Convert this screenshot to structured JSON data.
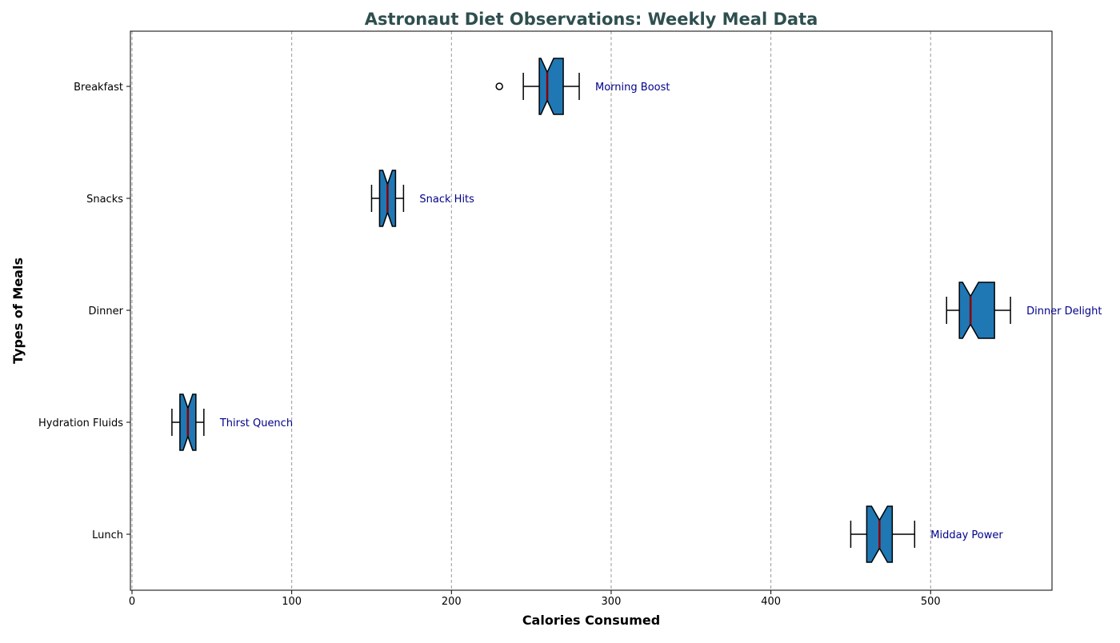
{
  "chart_data": {
    "type": "box",
    "orientation": "horizontal",
    "notched": true,
    "title": "Astronaut Diet Observations: Weekly Meal Data",
    "xlabel": "Calories Consumed",
    "ylabel": "Types of Meals",
    "xlim": [
      -1,
      576
    ],
    "xticks": [
      0,
      100,
      200,
      300,
      400,
      500
    ],
    "grid": "x-dashed",
    "categories": [
      "Lunch",
      "Hydration Fluids",
      "Dinner",
      "Snacks",
      "Breakfast"
    ],
    "boxes": [
      {
        "category": "Lunch",
        "whisker_low": 450,
        "q1": 460,
        "median": 468,
        "q3": 476,
        "whisker_high": 490,
        "notch_low": 463,
        "notch_high": 473,
        "outliers": [],
        "annotation": "Midday Power"
      },
      {
        "category": "Hydration Fluids",
        "whisker_low": 25,
        "q1": 30,
        "median": 35,
        "q3": 40,
        "whisker_high": 45,
        "notch_low": 32,
        "notch_high": 38,
        "outliers": [],
        "annotation": "Thirst Quench"
      },
      {
        "category": "Dinner",
        "whisker_low": 510,
        "q1": 518,
        "median": 525,
        "q3": 540,
        "whisker_high": 550,
        "notch_low": 520,
        "notch_high": 530,
        "outliers": [],
        "annotation": "Dinner Delight"
      },
      {
        "category": "Snacks",
        "whisker_low": 150,
        "q1": 155,
        "median": 160,
        "q3": 165,
        "whisker_high": 170,
        "notch_low": 157,
        "notch_high": 163,
        "outliers": [],
        "annotation": "Snack Hits"
      },
      {
        "category": "Breakfast",
        "whisker_low": 245,
        "q1": 255,
        "median": 260,
        "q3": 270,
        "whisker_high": 280,
        "notch_low": 256,
        "notch_high": 264,
        "outliers": [
          230
        ],
        "annotation": "Morning Boost"
      }
    ],
    "colors": {
      "box_fill": "#1f77b4",
      "box_edge": "#000000",
      "median": "#8b0000",
      "title": "#2f4f4f",
      "annotation": "#00008b",
      "grid": "#9a9a9a"
    }
  }
}
